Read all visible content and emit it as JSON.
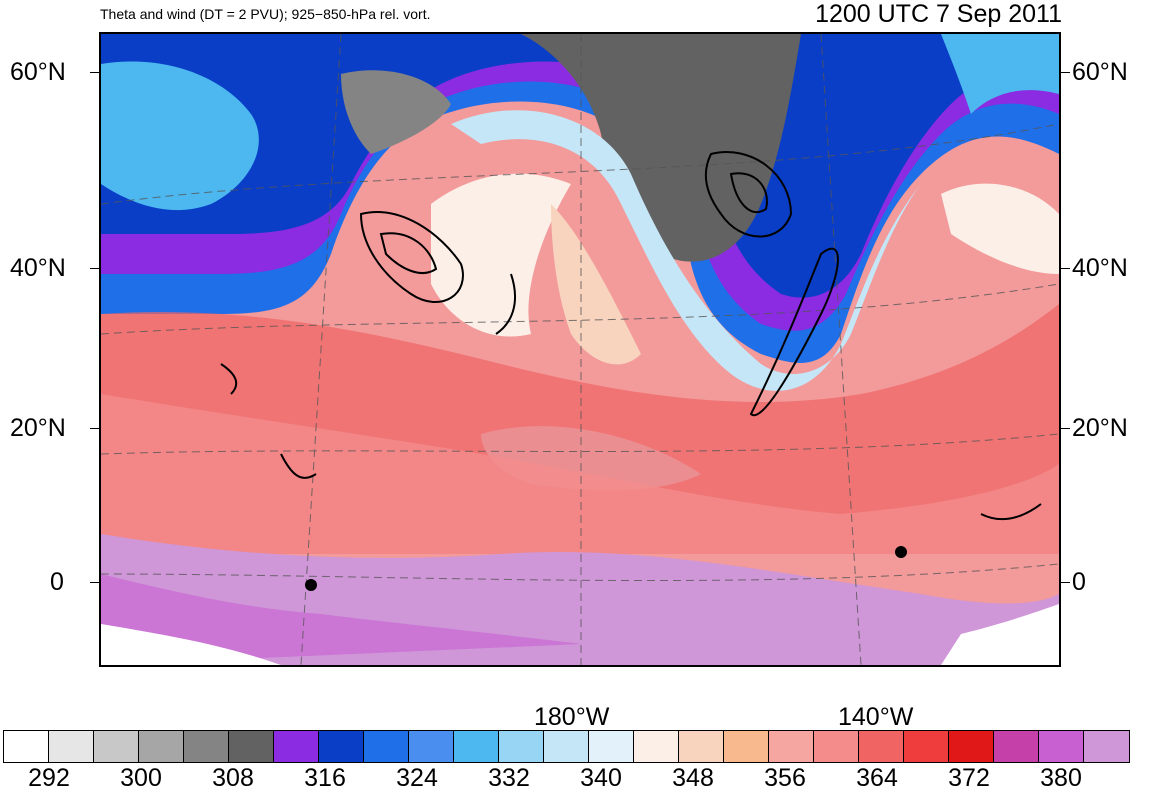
{
  "header": {
    "left_title": "Theta and wind (DT = 2 PVU); 925−850-hPa rel. vort.",
    "right_title": "1200 UTC 7 Sep 2011"
  },
  "axes": {
    "lat_labels": [
      "60°N",
      "40°N",
      "20°N",
      "0"
    ],
    "lon_labels": [
      "180°W",
      "140°W"
    ]
  },
  "colorbar": {
    "colors": [
      "#ffffff",
      "#e6e6e6",
      "#c8c8c8",
      "#a6a6a6",
      "#848484",
      "#626262",
      "#8b2be2",
      "#0a3ec7",
      "#1f6fe8",
      "#4a8ff0",
      "#4cb8ef",
      "#98d4f4",
      "#c5e6f7",
      "#e2f1fa",
      "#fcefe8",
      "#f8d3bd",
      "#f8b98f",
      "#f6a6a0",
      "#f48c8c",
      "#f06464",
      "#ef3c3c",
      "#e11818",
      "#c540a8",
      "#c860d2",
      "#cf96d8"
    ],
    "labels": [
      "292",
      "300",
      "308",
      "316",
      "324",
      "332",
      "340",
      "348",
      "356",
      "364",
      "372",
      "380"
    ]
  }
}
